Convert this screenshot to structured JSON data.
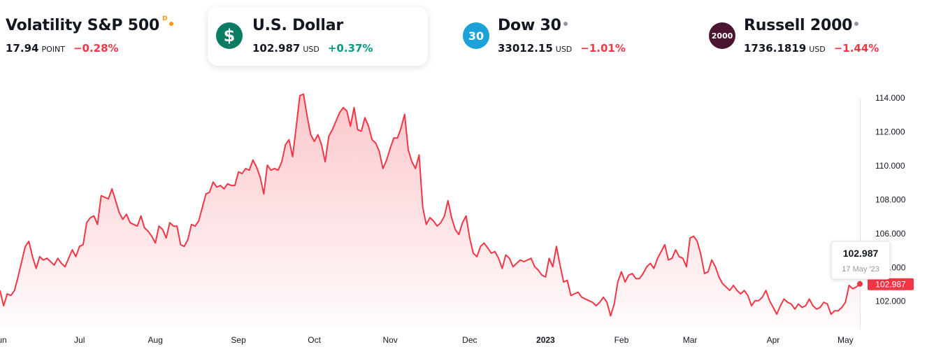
{
  "tickers": [
    {
      "name": "Volatility S&P 500",
      "suffix": "D",
      "dot_color": "#ff9800",
      "price": "17.94",
      "unit": "POINT",
      "change": "−0.28%",
      "change_color": "#f23645",
      "badge_text": "",
      "badge_color": ""
    },
    {
      "name": "U.S. Dollar",
      "suffix": "",
      "dot_color": "",
      "price": "102.987",
      "unit": "USD",
      "change": "+0.37%",
      "change_color": "#089981",
      "badge_text": "$",
      "badge_color": "#0a7c63"
    },
    {
      "name": "Dow 30",
      "suffix": "",
      "dot_color": "#9598a1",
      "price": "33012.15",
      "unit": "USD",
      "change": "−1.01%",
      "change_color": "#f23645",
      "badge_text": "30",
      "badge_color": "#1da1d9"
    },
    {
      "name": "Russell 2000",
      "suffix": "",
      "dot_color": "#9598a1",
      "price": "1736.1819",
      "unit": "USD",
      "change": "−1.44%",
      "change_color": "#f23645",
      "badge_text": "2000",
      "badge_color": "#4a1530"
    }
  ],
  "chart_data": {
    "type": "area",
    "line_color": "#f23645",
    "ylim": [
      100.5,
      115
    ],
    "y_ticks": [
      "114.000",
      "112.000",
      "110.000",
      "108.000",
      "106.000",
      "104.000",
      "102.000"
    ],
    "y_tick_values": [
      114,
      112,
      110,
      108,
      106,
      104,
      102
    ],
    "x_ticks": [
      "Jun",
      "Jul",
      "Aug",
      "Sep",
      "Oct",
      "Nov",
      "Dec",
      "2023",
      "Feb",
      "Mar",
      "Apr",
      "May"
    ],
    "x_tick_positions": [
      0,
      22,
      43,
      66,
      87,
      108,
      130,
      151,
      172,
      191,
      214,
      234
    ],
    "last_value_label": "102.987",
    "tooltip": {
      "value": "102.987",
      "date": "17 May '23"
    },
    "series": [
      {
        "values": [
          102.6,
          101.7,
          102.4,
          102.3,
          102.6,
          103.4,
          104.3,
          105.2,
          105.5,
          104.6,
          103.9,
          104.6,
          104.4,
          104.5,
          104.3,
          104.1,
          104.5,
          104.2,
          104.0,
          104.5,
          105.0,
          104.6,
          105.2,
          105.3,
          106.6,
          106.9,
          107.0,
          106.5,
          108.2,
          108.1,
          108.0,
          108.6,
          107.9,
          107.2,
          106.8,
          107.1,
          106.6,
          106.5,
          106.4,
          107.0,
          106.3,
          106.1,
          105.8,
          105.4,
          106.4,
          106.2,
          105.7,
          106.6,
          106.4,
          106.4,
          105.3,
          105.2,
          105.6,
          106.5,
          106.4,
          106.7,
          107.5,
          108.3,
          108.4,
          109.0,
          108.7,
          108.8,
          108.6,
          108.9,
          108.8,
          108.8,
          109.6,
          109.5,
          109.8,
          109.7,
          110.3,
          109.9,
          109.3,
          108.3,
          110.0,
          109.7,
          109.8,
          109.7,
          110.2,
          111.2,
          111.5,
          110.5,
          112.3,
          114.1,
          114.2,
          112.9,
          111.8,
          111.4,
          111.8,
          111.2,
          110.2,
          111.7,
          112.1,
          112.6,
          113.1,
          113.4,
          113.2,
          112.3,
          113.4,
          112.1,
          112.0,
          112.8,
          112.3,
          111.5,
          111.3,
          110.8,
          109.8,
          110.3,
          111.0,
          111.6,
          111.6,
          112.2,
          113.0,
          110.9,
          110.2,
          109.8,
          110.6,
          107.5,
          106.5,
          106.9,
          106.7,
          106.4,
          106.6,
          107.0,
          107.9,
          106.9,
          106.2,
          105.9,
          106.6,
          107.0,
          105.7,
          104.8,
          104.6,
          105.2,
          105.4,
          105.1,
          104.8,
          104.9,
          104.5,
          103.9,
          104.7,
          104.5,
          104.0,
          104.2,
          104.4,
          104.3,
          104.4,
          104.5,
          104.0,
          103.8,
          103.5,
          103.4,
          104.5,
          104.0,
          105.2,
          104.1,
          103.1,
          103.2,
          102.3,
          102.4,
          102.5,
          102.2,
          102.1,
          102.0,
          101.9,
          101.7,
          101.9,
          102.2,
          101.9,
          101.1,
          101.8,
          103.1,
          103.7,
          103.1,
          103.5,
          103.6,
          103.3,
          103.3,
          103.6,
          104.0,
          104.2,
          103.9,
          104.5,
          104.9,
          105.3,
          104.4,
          104.5,
          105.0,
          104.6,
          104.5,
          104.0,
          105.7,
          105.8,
          105.5,
          104.7,
          103.6,
          103.7,
          104.4,
          104.0,
          103.4,
          103.0,
          102.8,
          102.6,
          102.9,
          102.6,
          102.4,
          102.6,
          102.3,
          101.7,
          102.0,
          102.0,
          102.2,
          102.6,
          102.0,
          101.6,
          101.2,
          101.7,
          102.1,
          101.9,
          101.8,
          101.5,
          101.8,
          101.6,
          101.7,
          102.1,
          101.7,
          101.5,
          101.6,
          101.9,
          101.8,
          101.2,
          101.4,
          101.4,
          101.6,
          101.9,
          102.9,
          102.7,
          102.8,
          102.987
        ]
      }
    ]
  }
}
